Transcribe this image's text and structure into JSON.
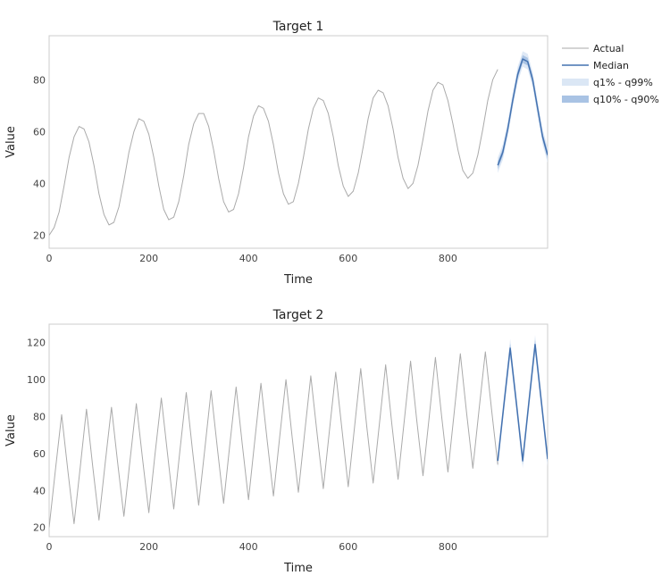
{
  "colors": {
    "actual": "#aaaaaa",
    "median": "#4472b0",
    "band_outer": "#dbe7f5",
    "band_inner": "#a9c3e4",
    "frame": "#cccccc"
  },
  "legend": {
    "position": "right",
    "items": [
      {
        "label": "Actual",
        "kind": "line",
        "color_key": "actual"
      },
      {
        "label": "Median",
        "kind": "line",
        "color_key": "median"
      },
      {
        "label": "q1% - q99%",
        "kind": "band",
        "color_key": "band_outer"
      },
      {
        "label": "q10% - q90%",
        "kind": "band",
        "color_key": "band_inner"
      }
    ]
  },
  "chart_data": [
    {
      "type": "line",
      "title": "Target 1",
      "xlabel": "Time",
      "ylabel": "Value",
      "xlim": [
        0,
        1000
      ],
      "ylim": [
        15,
        97
      ],
      "xticks": [
        0,
        200,
        400,
        600,
        800
      ],
      "yticks": [
        20,
        40,
        60,
        80
      ],
      "grid": false,
      "forecast_start": 900,
      "series": [
        {
          "name": "Actual",
          "x": [
            0,
            10,
            20,
            30,
            40,
            50,
            60,
            70,
            80,
            90,
            100,
            110,
            120,
            130,
            140,
            150,
            160,
            170,
            180,
            190,
            200,
            210,
            220,
            230,
            240,
            250,
            260,
            270,
            280,
            290,
            300,
            310,
            320,
            330,
            340,
            350,
            360,
            370,
            380,
            390,
            400,
            410,
            420,
            430,
            440,
            450,
            460,
            470,
            480,
            490,
            500,
            510,
            520,
            530,
            540,
            550,
            560,
            570,
            580,
            590,
            600,
            610,
            620,
            630,
            640,
            650,
            660,
            670,
            680,
            690,
            700,
            710,
            720,
            730,
            740,
            750,
            760,
            770,
            780,
            790,
            800,
            810,
            820,
            830,
            840,
            850,
            860,
            870,
            880,
            890,
            900
          ],
          "values": [
            20,
            23,
            29,
            39,
            50,
            58,
            62,
            61,
            56,
            47,
            36,
            28,
            24,
            25,
            31,
            41,
            52,
            60,
            65,
            64,
            59,
            50,
            39,
            30,
            26,
            27,
            33,
            43,
            55,
            63,
            67,
            67,
            62,
            53,
            42,
            33,
            29,
            30,
            36,
            46,
            58,
            66,
            70,
            69,
            64,
            55,
            44,
            36,
            32,
            33,
            40,
            50,
            61,
            69,
            73,
            72,
            67,
            58,
            47,
            39,
            35,
            37,
            44,
            54,
            65,
            73,
            76,
            75,
            70,
            61,
            50,
            42,
            38,
            40,
            47,
            57,
            68,
            76,
            79,
            78,
            72,
            63,
            53,
            45,
            42,
            44,
            51,
            61,
            72,
            80,
            84
          ]
        },
        {
          "name": "Median",
          "x": [
            900,
            910,
            920,
            930,
            940,
            950,
            960,
            970,
            980,
            990,
            1000
          ],
          "values": [
            47,
            52,
            61,
            72,
            82,
            88,
            87,
            80,
            69,
            58,
            51
          ]
        }
      ],
      "bands": [
        {
          "name": "q1% - q99%",
          "x": [
            900,
            910,
            920,
            930,
            940,
            950,
            960,
            970,
            980,
            990,
            1000
          ],
          "lower": [
            44,
            49,
            58,
            69,
            79,
            85,
            84,
            77,
            66,
            55,
            48
          ],
          "upper": [
            50,
            55,
            64,
            75,
            85,
            91,
            90,
            83,
            72,
            61,
            54
          ]
        },
        {
          "name": "q10% - q90%",
          "x": [
            900,
            910,
            920,
            930,
            940,
            950,
            960,
            970,
            980,
            990,
            1000
          ],
          "lower": [
            45.5,
            50.5,
            59.5,
            70.5,
            80.5,
            86.5,
            85.5,
            78.5,
            67.5,
            56.5,
            49.5
          ],
          "upper": [
            48.5,
            53.5,
            62.5,
            73.5,
            83.5,
            89.5,
            88.5,
            81.5,
            70.5,
            59.5,
            52.5
          ]
        }
      ]
    },
    {
      "type": "line",
      "title": "Target 2",
      "xlabel": "Time",
      "ylabel": "Value",
      "xlim": [
        0,
        1000
      ],
      "ylim": [
        15,
        130
      ],
      "xticks": [
        0,
        200,
        400,
        600,
        800
      ],
      "yticks": [
        20,
        40,
        60,
        80,
        100,
        120
      ],
      "grid": false,
      "forecast_start": 900,
      "series": [
        {
          "name": "Actual",
          "x": [
            0,
            12.5,
            25,
            37.5,
            50,
            62.5,
            75,
            87.5,
            100,
            112.5,
            125,
            137.5,
            150,
            162.5,
            175,
            187.5,
            200,
            212.5,
            225,
            237.5,
            250,
            262.5,
            275,
            287.5,
            300,
            312.5,
            325,
            337.5,
            350,
            362.5,
            375,
            387.5,
            400,
            412.5,
            425,
            437.5,
            450,
            462.5,
            475,
            487.5,
            500,
            512.5,
            525,
            537.5,
            550,
            562.5,
            575,
            587.5,
            600,
            612.5,
            625,
            637.5,
            650,
            662.5,
            675,
            687.5,
            700,
            712.5,
            725,
            737.5,
            750,
            762.5,
            775,
            787.5,
            800,
            812.5,
            825,
            837.5,
            850,
            862.5,
            875,
            887.5,
            900
          ],
          "values": [
            20,
            51,
            81,
            51,
            22,
            53,
            84,
            53,
            24,
            55,
            85,
            55,
            26,
            57,
            87,
            57,
            28,
            60,
            90,
            60,
            30,
            62,
            93,
            62,
            32,
            63,
            94,
            63,
            33,
            65,
            96,
            65,
            35,
            67,
            98,
            67,
            37,
            69,
            100,
            69,
            39,
            71,
            102,
            71,
            41,
            73,
            104,
            73,
            42,
            74,
            106,
            74,
            44,
            76,
            108,
            76,
            46,
            78,
            110,
            78,
            48,
            80,
            112,
            80,
            50,
            82,
            114,
            82,
            52,
            84,
            115,
            84,
            54
          ]
        },
        {
          "name": "Median",
          "x": [
            900,
            912.5,
            925,
            937.5,
            950,
            962.5,
            975,
            987.5,
            1000
          ],
          "values": [
            56,
            87,
            117,
            87,
            56,
            88,
            119,
            88,
            57
          ]
        }
      ],
      "bands": [
        {
          "name": "q1% - q99%",
          "x": [
            900,
            912.5,
            925,
            937.5,
            950,
            962.5,
            975,
            987.5,
            1000
          ],
          "lower": [
            52,
            83,
            112,
            83,
            52,
            84,
            114,
            84,
            53
          ],
          "upper": [
            60,
            91,
            122,
            91,
            60,
            92,
            124,
            92,
            61
          ]
        },
        {
          "name": "q10% - q90%",
          "x": [
            900,
            912.5,
            925,
            937.5,
            950,
            962.5,
            975,
            987.5,
            1000
          ],
          "lower": [
            54,
            85,
            114.5,
            85,
            54,
            86,
            116.5,
            86,
            55
          ],
          "upper": [
            58,
            89,
            119.5,
            89,
            58,
            90,
            121.5,
            90,
            59
          ]
        }
      ]
    }
  ]
}
